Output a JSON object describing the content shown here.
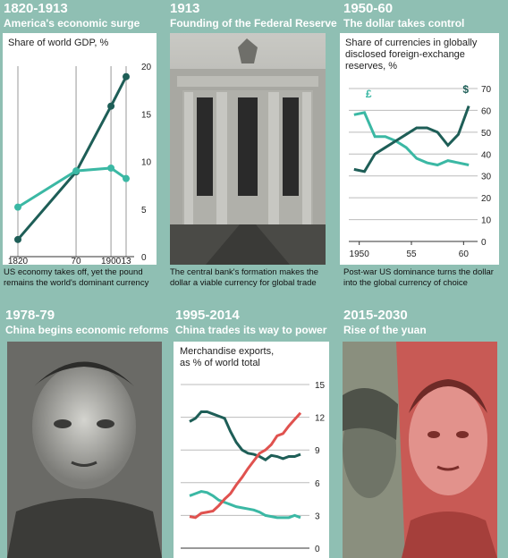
{
  "colors": {
    "dark": "#1e5e57",
    "teal": "#3bb8a4",
    "red": "#e0524f",
    "bg": "#8fbfb3"
  },
  "panels": {
    "p1": {
      "year": "1820-1913",
      "title": "America's economic surge",
      "caption_line1": "US economy takes off, yet the pound",
      "caption_line2": "remains the world's dominant currency"
    },
    "p2": {
      "year": "1913",
      "title": "Founding of the Federal Reserve",
      "caption_line1": "The central bank's formation makes the",
      "caption_line2": "dollar a viable currency for global trade"
    },
    "p3": {
      "year": "1950-60",
      "title": "The dollar takes control",
      "caption_line1": "Post-war US dominance turns the dollar",
      "caption_line2": "into the global currency of choice"
    },
    "p4": {
      "year": "1978-79",
      "title": "China begins economic reforms"
    },
    "p5": {
      "year": "1995-2014",
      "title": "China trades its way to power"
    },
    "p6": {
      "year": "2015-2030",
      "title": "Rise of the yuan"
    }
  },
  "chart_data": [
    {
      "type": "line",
      "title": "Share of world GDP, %",
      "x": [
        1820,
        1870,
        1900,
        1913
      ],
      "x_tick_labels": [
        "1820",
        "70",
        "1900",
        "13"
      ],
      "ylim": [
        0,
        20
      ],
      "y_ticks": [
        0,
        5,
        10,
        15,
        20
      ],
      "grid": "vertical",
      "series": [
        {
          "color": "dark",
          "values": [
            1.8,
            8.9,
            15.8,
            18.9
          ]
        },
        {
          "color": "teal",
          "values": [
            5.2,
            9.0,
            9.3,
            8.2
          ]
        }
      ]
    },
    {
      "type": "line",
      "title_line1": "Share of currencies in globally",
      "title_line2": "disclosed foreign-exchange",
      "title_line3": "reserves, %",
      "x_tick_labels": [
        "1950",
        "55",
        "60"
      ],
      "x_tick_values": [
        1950,
        1955,
        1960
      ],
      "xlim": [
        1949,
        1961
      ],
      "ylim": [
        0,
        70
      ],
      "y_ticks": [
        0,
        10,
        20,
        30,
        40,
        50,
        60,
        70
      ],
      "grid": "horizontal",
      "series": [
        {
          "name": "£",
          "color": "teal",
          "x": [
            1949.5,
            1950.5,
            1951.5,
            1952.5,
            1953.5,
            1954.5,
            1955.5,
            1956.5,
            1957.5,
            1958.5,
            1959.5,
            1960.5
          ],
          "values": [
            58,
            59,
            48,
            48,
            46,
            43,
            38,
            36,
            35,
            37,
            36,
            35
          ]
        },
        {
          "name": "$",
          "color": "dark",
          "x": [
            1949.5,
            1950.5,
            1951.5,
            1952.5,
            1953.5,
            1954.5,
            1955.5,
            1956.5,
            1957.5,
            1958.5,
            1959.5,
            1960.5
          ],
          "values": [
            33,
            32,
            40,
            43,
            46,
            49,
            52,
            52,
            50,
            44,
            49,
            62
          ]
        }
      ]
    },
    {
      "type": "line",
      "title_line1": "Merchandise exports,",
      "title_line2": "as % of world total",
      "xlim": [
        1995,
        2014
      ],
      "ylim": [
        0,
        15
      ],
      "y_ticks": [
        0,
        3,
        6,
        9,
        12,
        15
      ],
      "grid": "horizontal",
      "series": [
        {
          "color": "dark",
          "x": [
            1995,
            1996,
            1997,
            1998,
            1999,
            2000,
            2001,
            2002,
            2003,
            2004,
            2005,
            2006,
            2007,
            2008,
            2009,
            2010,
            2011,
            2012,
            2013,
            2014
          ],
          "values": [
            11.6,
            11.9,
            12.5,
            12.5,
            12.3,
            12.1,
            11.9,
            10.7,
            9.7,
            9.0,
            8.7,
            8.6,
            8.4,
            8.1,
            8.5,
            8.4,
            8.2,
            8.4,
            8.4,
            8.6
          ]
        },
        {
          "color": "teal",
          "x": [
            1995,
            1996,
            1997,
            1998,
            1999,
            2000,
            2001,
            2002,
            2003,
            2004,
            2005,
            2006,
            2007,
            2008,
            2009,
            2010,
            2011,
            2012,
            2013,
            2014
          ],
          "values": [
            4.8,
            5.0,
            5.2,
            5.1,
            4.8,
            4.4,
            4.2,
            4.0,
            3.8,
            3.7,
            3.6,
            3.5,
            3.3,
            3.0,
            2.9,
            2.8,
            2.8,
            2.8,
            3.0,
            2.8
          ]
        },
        {
          "color": "red",
          "x": [
            1995,
            1996,
            1997,
            1998,
            1999,
            2000,
            2001,
            2002,
            2003,
            2004,
            2005,
            2006,
            2007,
            2008,
            2009,
            2010,
            2011,
            2012,
            2013,
            2014
          ],
          "values": [
            2.9,
            2.8,
            3.2,
            3.3,
            3.4,
            3.9,
            4.5,
            5.0,
            5.8,
            6.5,
            7.3,
            8.0,
            8.7,
            9.0,
            9.5,
            10.3,
            10.5,
            11.2,
            11.8,
            12.4
          ]
        }
      ]
    }
  ]
}
